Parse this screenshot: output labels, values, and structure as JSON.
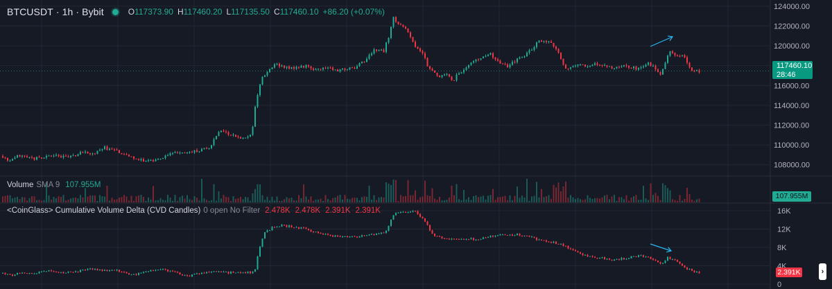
{
  "header": {
    "symbol": "BTCUSDT",
    "interval": "1h",
    "exchange": "Bybit",
    "separator": "·",
    "ohlc": [
      {
        "key": "O",
        "value": "117373.90"
      },
      {
        "key": "H",
        "value": "117460.20"
      },
      {
        "key": "L",
        "value": "117135.50"
      },
      {
        "key": "C",
        "value": "117460.10"
      }
    ],
    "change": "+86.20 (+0.07%)"
  },
  "volume_legend": {
    "title": "Volume",
    "sma": "SMA 9",
    "value": "107.955M"
  },
  "cvd_legend": {
    "title": "<CoinGlass> Cumulative Volume Delta (CVD Candles)",
    "options": "0 open No Filter",
    "values": [
      "2.478K",
      "2.478K",
      "2.391K",
      "2.391K"
    ]
  },
  "price_axis": {
    "ticks": [
      "124000.00",
      "122000.00",
      "120000.00",
      "118000.00",
      "116000.00",
      "114000.00",
      "112000.00",
      "110000.00",
      "108000.00"
    ],
    "last_price": "117460.10",
    "countdown": "28:46"
  },
  "volume_axis": {
    "last_value": "107.955M"
  },
  "cvd_axis": {
    "ticks": [
      "16K",
      "12K",
      "8K",
      "4K",
      "0"
    ],
    "last_value": "2.391K"
  },
  "colors": {
    "background": "#161a25",
    "up": "#22ab94",
    "down": "#f23645",
    "grid": "#232733",
    "annotation": "#29b6f6"
  },
  "icons": {
    "status": "dot-icon",
    "scroll": "chevron-right-icon"
  },
  "chart_data": {
    "type": "candlestick",
    "price_range": [
      107000,
      124200
    ],
    "price_path": [
      [
        0,
        109100
      ],
      [
        12,
        108200
      ],
      [
        25,
        108900
      ],
      [
        40,
        108600
      ],
      [
        60,
        108700
      ],
      [
        80,
        108900
      ],
      [
        100,
        108700
      ],
      [
        118,
        109300
      ],
      [
        135,
        109100
      ],
      [
        150,
        109700
      ],
      [
        165,
        109400
      ],
      [
        180,
        109000
      ],
      [
        195,
        108600
      ],
      [
        210,
        108300
      ],
      [
        225,
        108500
      ],
      [
        240,
        108900
      ],
      [
        255,
        109300
      ],
      [
        270,
        109200
      ],
      [
        285,
        109500
      ],
      [
        300,
        109600
      ],
      [
        315,
        111400
      ],
      [
        330,
        111000
      ],
      [
        350,
        110700
      ],
      [
        362,
        111200
      ],
      [
        368,
        114200
      ],
      [
        375,
        116600
      ],
      [
        385,
        117300
      ],
      [
        398,
        118200
      ],
      [
        410,
        117800
      ],
      [
        425,
        117700
      ],
      [
        440,
        118000
      ],
      [
        455,
        117600
      ],
      [
        470,
        117800
      ],
      [
        490,
        117500
      ],
      [
        510,
        117800
      ],
      [
        525,
        118400
      ],
      [
        540,
        119700
      ],
      [
        552,
        119400
      ],
      [
        560,
        121000
      ],
      [
        566,
        122800
      ],
      [
        574,
        122300
      ],
      [
        585,
        121700
      ],
      [
        595,
        120200
      ],
      [
        608,
        119400
      ],
      [
        618,
        117600
      ],
      [
        630,
        116900
      ],
      [
        640,
        117200
      ],
      [
        652,
        116500
      ],
      [
        662,
        117300
      ],
      [
        675,
        118100
      ],
      [
        690,
        118700
      ],
      [
        705,
        119200
      ],
      [
        718,
        118400
      ],
      [
        730,
        117900
      ],
      [
        745,
        118600
      ],
      [
        760,
        119300
      ],
      [
        775,
        120400
      ],
      [
        790,
        120500
      ],
      [
        802,
        119700
      ],
      [
        815,
        117600
      ],
      [
        830,
        118100
      ],
      [
        845,
        118000
      ],
      [
        860,
        118200
      ],
      [
        880,
        117800
      ],
      [
        900,
        118000
      ],
      [
        920,
        117700
      ],
      [
        935,
        118200
      ],
      [
        945,
        117700
      ],
      [
        952,
        117200
      ],
      [
        960,
        118600
      ],
      [
        966,
        119600
      ],
      [
        974,
        118900
      ],
      [
        984,
        119200
      ],
      [
        992,
        118000
      ],
      [
        1000,
        117400
      ],
      [
        1008,
        117460
      ]
    ],
    "volume_sma_9": "107.955M",
    "cvd_range": [
      0,
      17500
    ],
    "cvd_path": [
      [
        0,
        2600
      ],
      [
        15,
        1800
      ],
      [
        30,
        2500
      ],
      [
        50,
        2300
      ],
      [
        70,
        3000
      ],
      [
        90,
        2600
      ],
      [
        110,
        2800
      ],
      [
        130,
        3300
      ],
      [
        150,
        3000
      ],
      [
        170,
        2900
      ],
      [
        190,
        1900
      ],
      [
        210,
        2700
      ],
      [
        230,
        3400
      ],
      [
        250,
        2600
      ],
      [
        270,
        1800
      ],
      [
        290,
        2400
      ],
      [
        310,
        2700
      ],
      [
        330,
        2500
      ],
      [
        350,
        2600
      ],
      [
        366,
        2500
      ],
      [
        372,
        7000
      ],
      [
        380,
        11200
      ],
      [
        392,
        12300
      ],
      [
        405,
        12800
      ],
      [
        420,
        12500
      ],
      [
        440,
        12100
      ],
      [
        460,
        10900
      ],
      [
        480,
        10500
      ],
      [
        500,
        10300
      ],
      [
        520,
        10400
      ],
      [
        540,
        10900
      ],
      [
        555,
        11200
      ],
      [
        563,
        14000
      ],
      [
        570,
        15700
      ],
      [
        585,
        15400
      ],
      [
        596,
        16200
      ],
      [
        606,
        14700
      ],
      [
        615,
        12800
      ],
      [
        625,
        10400
      ],
      [
        640,
        10100
      ],
      [
        655,
        9700
      ],
      [
        670,
        9900
      ],
      [
        685,
        9800
      ],
      [
        700,
        10100
      ],
      [
        715,
        10700
      ],
      [
        730,
        10600
      ],
      [
        745,
        10900
      ],
      [
        760,
        10400
      ],
      [
        775,
        9700
      ],
      [
        790,
        9200
      ],
      [
        805,
        8900
      ],
      [
        820,
        7800
      ],
      [
        835,
        6600
      ],
      [
        850,
        6000
      ],
      [
        865,
        5700
      ],
      [
        880,
        5300
      ],
      [
        900,
        5600
      ],
      [
        915,
        6100
      ],
      [
        930,
        6200
      ],
      [
        945,
        5000
      ],
      [
        955,
        4400
      ],
      [
        962,
        5800
      ],
      [
        968,
        5400
      ],
      [
        978,
        4700
      ],
      [
        990,
        3300
      ],
      [
        1000,
        2700
      ],
      [
        1008,
        2391
      ]
    ],
    "annotations": [
      {
        "pane": "price",
        "type": "arrow",
        "direction": "up-right"
      },
      {
        "pane": "cvd",
        "type": "arrow",
        "direction": "down-right"
      }
    ]
  }
}
